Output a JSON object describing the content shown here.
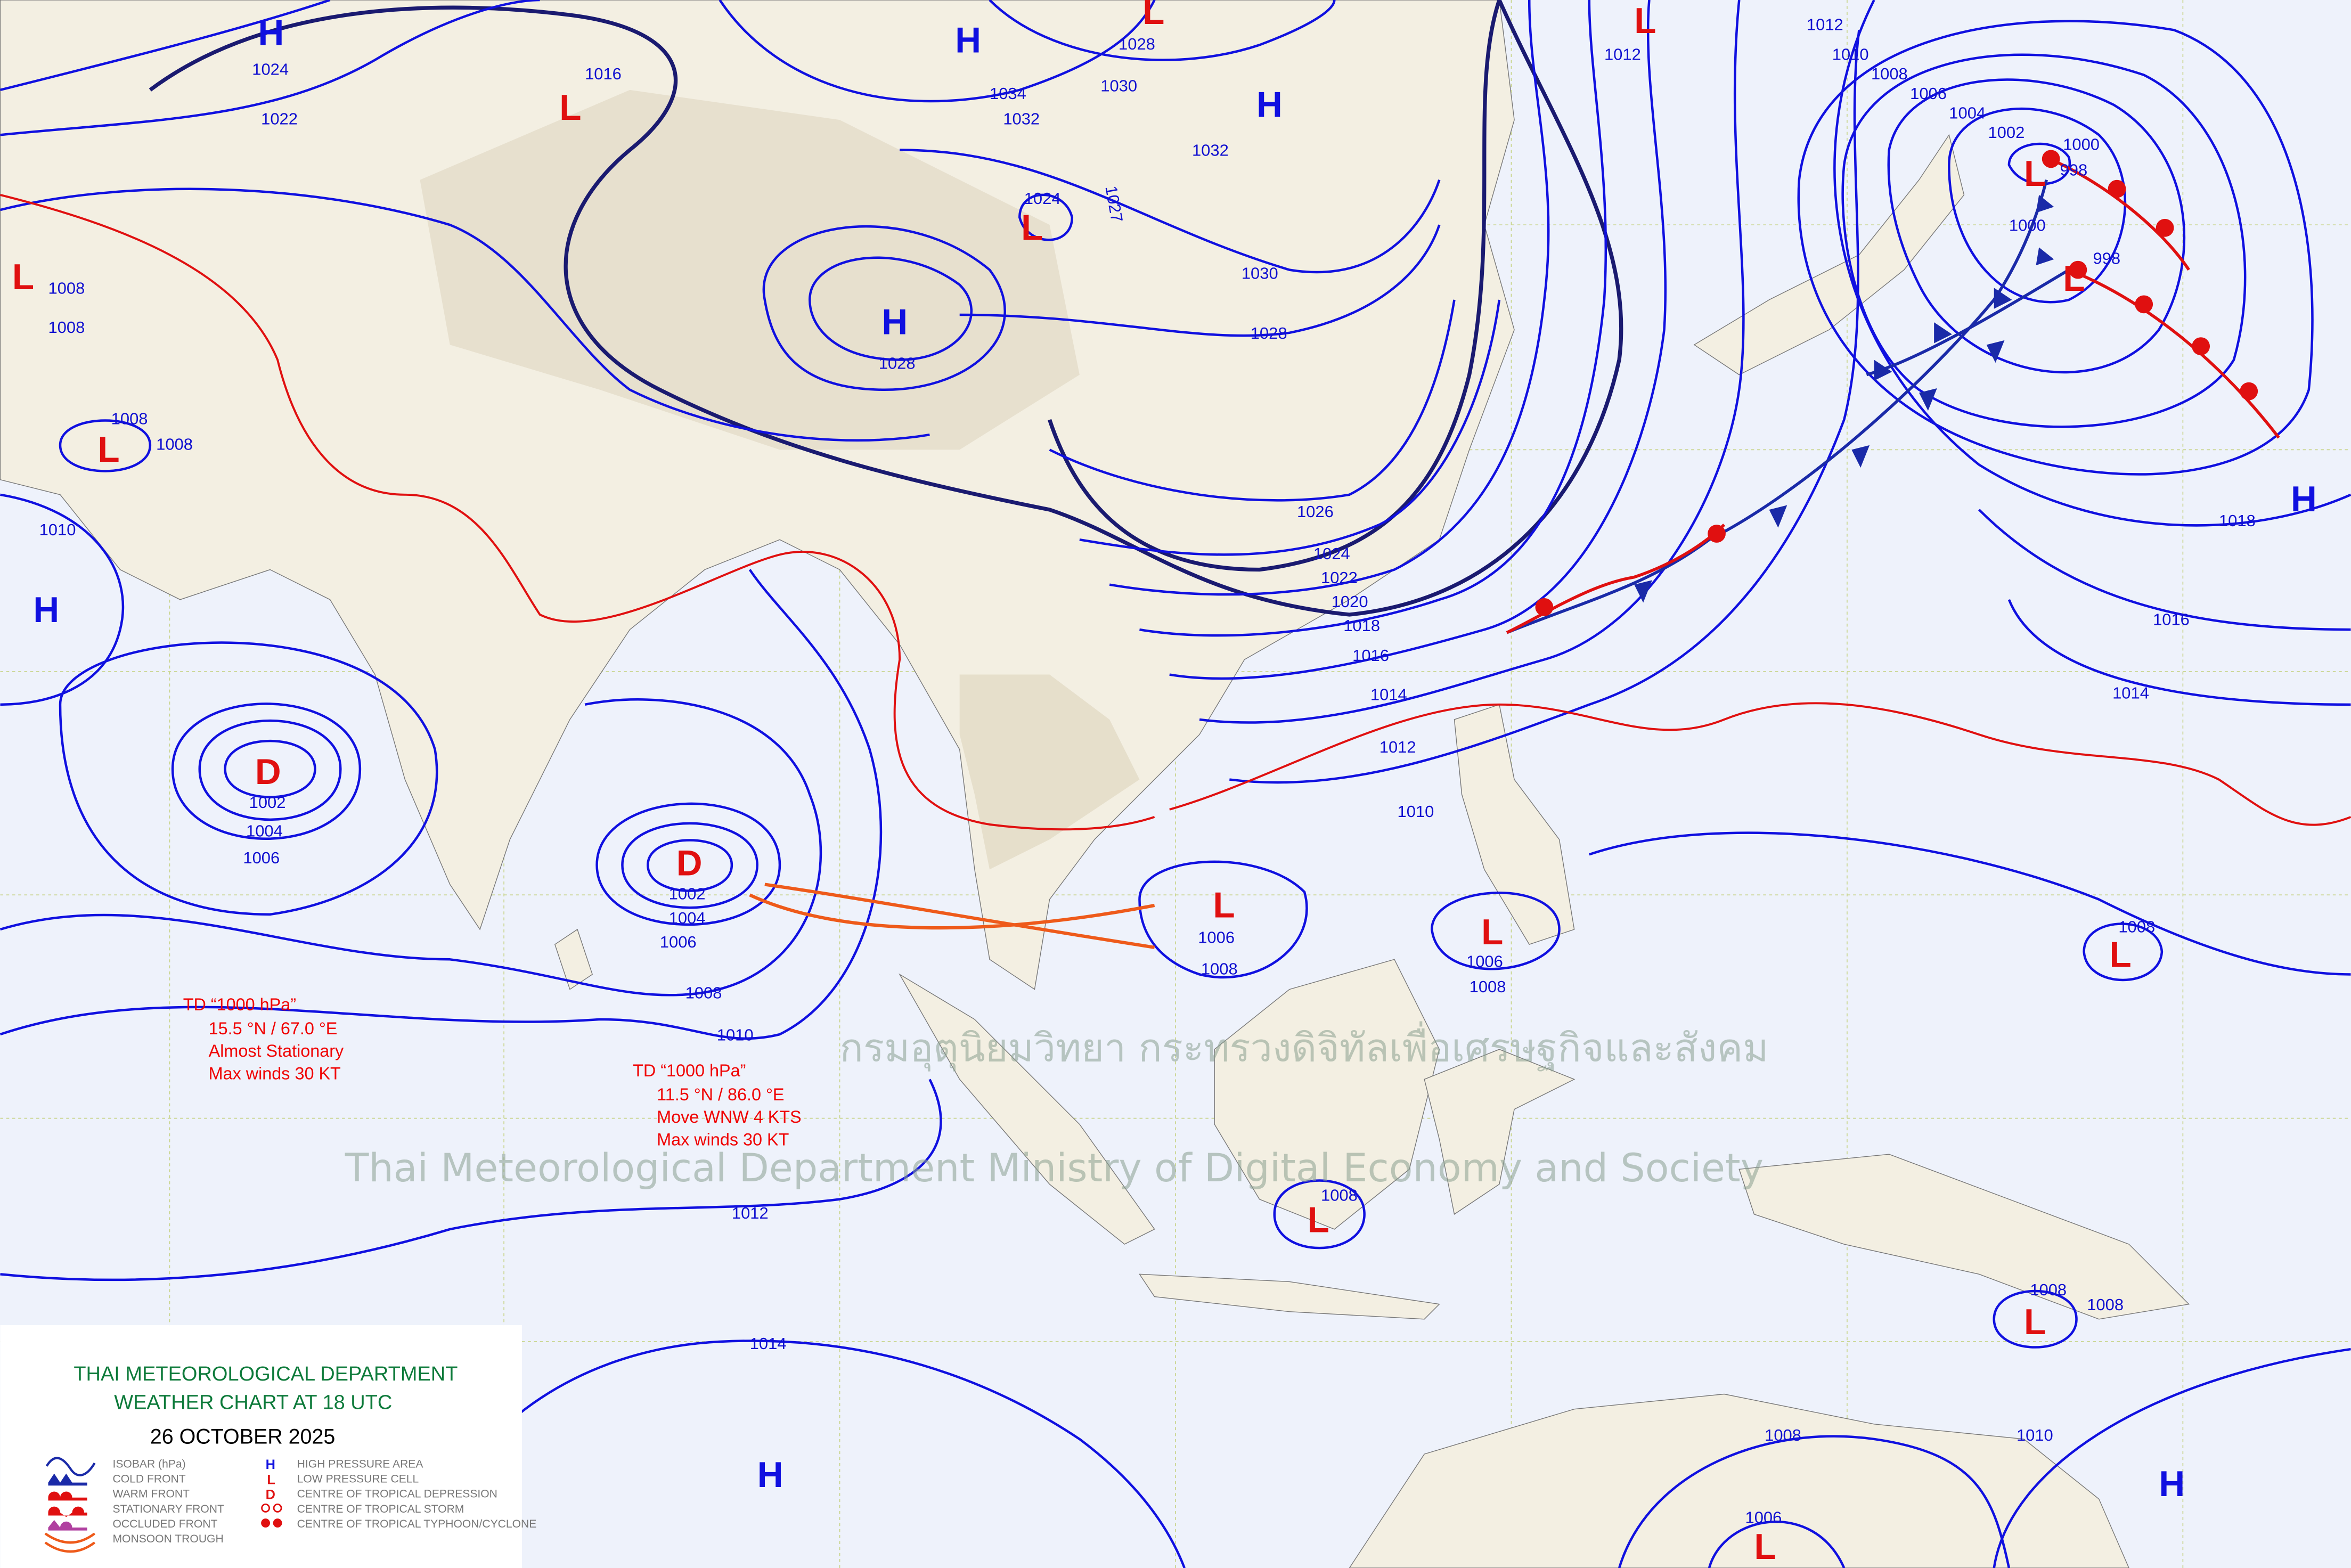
{
  "legend": {
    "title_line1": "THAI METEOROLOGICAL DEPARTMENT",
    "title_line2": "WEATHER CHART AT   18  UTC",
    "date": "26  OCTOBER  2025",
    "items_left": [
      "ISOBAR (hPa)",
      "COLD FRONT",
      "WARM FRONT",
      "STATIONARY FRONT",
      "OCCLUDED FRONT",
      "MONSOON TROUGH"
    ],
    "items_right": [
      "HIGH PRESSURE AREA",
      "LOW PRESSURE CELL",
      "CENTRE OF TROPICAL DEPRESSION",
      "CENTRE OF TROPICAL STORM",
      "CENTRE OF TROPICAL TYPHOON/CYCLONE"
    ],
    "symbols": {
      "H": "H",
      "L": "L",
      "D": "D"
    }
  },
  "watermark": {
    "thai": "กรมอุตุนิยมวิทยา กระทรวงดิจิทัลเพื่อเศรษฐกิจและสังคม",
    "english": "Thai Meteorological Department Ministry of Digital Economy and Society"
  },
  "annotations": [
    {
      "lines": [
        "TD “1000 hPa”",
        "15.5 °N / 67.0 °E",
        "Almost Stationary",
        "Max winds 30 KT"
      ]
    },
    {
      "lines": [
        "TD “1000 hPa”",
        "11.5 °N / 86.0 °E",
        "Move WNW 4 KTS",
        "Max winds 30 KT"
      ]
    }
  ],
  "pressure_centers": [
    {
      "symbol": "H",
      "value": "1024"
    },
    {
      "symbol": "H",
      "value": ""
    },
    {
      "symbol": "L",
      "value": "1028"
    },
    {
      "symbol": "L",
      "value": "1012"
    },
    {
      "symbol": "L",
      "value": "1016"
    },
    {
      "symbol": "H",
      "value": ""
    },
    {
      "symbol": "L",
      "value": "1024"
    },
    {
      "symbol": "H",
      "value": "1028"
    },
    {
      "symbol": "L",
      "value": "1008"
    },
    {
      "symbol": "L",
      "value": "1008"
    },
    {
      "symbol": "H",
      "value": ""
    },
    {
      "symbol": "D",
      "value": "1002"
    },
    {
      "symbol": "D",
      "value": "1002"
    },
    {
      "symbol": "L",
      "value": "1006"
    },
    {
      "symbol": "L",
      "value": "1006"
    },
    {
      "symbol": "L",
      "value": "1008"
    },
    {
      "symbol": "L",
      "value": "1008"
    },
    {
      "symbol": "L",
      "value": "1008"
    },
    {
      "symbol": "H",
      "value": ""
    },
    {
      "symbol": "H",
      "value": ""
    },
    {
      "symbol": "L",
      "value": "1006"
    },
    {
      "symbol": "H",
      "value": "1018"
    },
    {
      "symbol": "L",
      "value": "998"
    },
    {
      "symbol": "L",
      "value": "998"
    }
  ],
  "isobar_labels": [
    "1022",
    "1034",
    "1032",
    "1030",
    "1032",
    "1027",
    "1030",
    "1028",
    "1026",
    "1024",
    "1022",
    "1020",
    "1018",
    "1016",
    "1014",
    "1012",
    "1010",
    "1010",
    "1008",
    "1006",
    "1004",
    "1002",
    "1000",
    "1000",
    "1016",
    "1014",
    "1012",
    "1012",
    "1014",
    "1010",
    "1008",
    "1010",
    "1008",
    "1010",
    "1008",
    "1004",
    "1006",
    "1004",
    "1006",
    "1008",
    "1008",
    "1008",
    "1008"
  ],
  "colors": {
    "isobar": "#1010e0",
    "cold_front": "#1a2aa8",
    "warm_front": "#e01010",
    "monsoon_trough": "#ee5a1a",
    "title": "#0d7a3a",
    "ocean": "#eef2fb",
    "land": "#f3efe2"
  }
}
